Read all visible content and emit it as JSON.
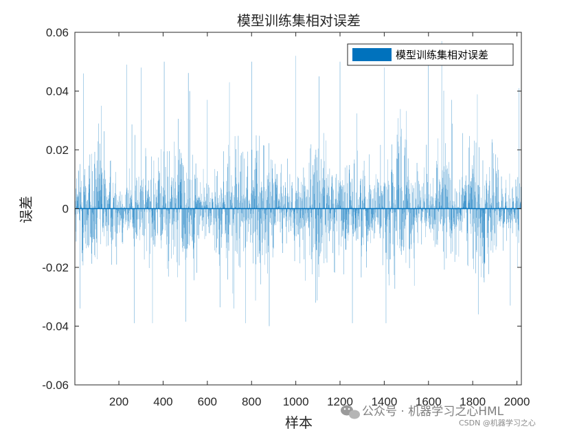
{
  "chart_data": {
    "type": "bar",
    "title": "模型训练集相对误差",
    "xlabel": "样本",
    "ylabel": "误差",
    "x_range": [
      1,
      2020
    ],
    "ylim": [
      -0.06,
      0.06
    ],
    "x_ticks": [
      200,
      400,
      600,
      800,
      1000,
      1200,
      1400,
      1600,
      1800,
      2000
    ],
    "x_tick_labels": [
      "200",
      "400",
      "600",
      "800",
      "1000",
      "1200",
      "1400",
      "1600",
      "1800",
      "2000"
    ],
    "y_ticks": [
      -0.06,
      -0.04,
      -0.02,
      0,
      0.02,
      0.04,
      0.06
    ],
    "y_tick_labels": [
      "-0.06",
      "-0.04",
      "-0.02",
      "0",
      "0.02",
      "0.04",
      "0.06"
    ],
    "grid": false,
    "legend": {
      "position": "top-right"
    },
    "series": [
      {
        "name": "模型训练集相对误差",
        "color": "#0072BD",
        "sample_count": 2020,
        "noise_range": [
          -0.039,
          0.057
        ],
        "peaks": [
          {
            "x": 25,
            "y": -0.034
          },
          {
            "x": 40,
            "y": 0.046
          },
          {
            "x": 120,
            "y": 0.035
          },
          {
            "x": 235,
            "y": 0.049
          },
          {
            "x": 270,
            "y": -0.039
          },
          {
            "x": 300,
            "y": 0.048
          },
          {
            "x": 405,
            "y": 0.05
          },
          {
            "x": 520,
            "y": 0.04
          },
          {
            "x": 600,
            "y": 0.037
          },
          {
            "x": 700,
            "y": 0.043
          },
          {
            "x": 720,
            "y": -0.034
          },
          {
            "x": 800,
            "y": 0.05
          },
          {
            "x": 880,
            "y": -0.04
          },
          {
            "x": 1000,
            "y": 0.052
          },
          {
            "x": 1105,
            "y": 0.045
          },
          {
            "x": 1200,
            "y": 0.05
          },
          {
            "x": 1400,
            "y": 0.048
          },
          {
            "x": 1600,
            "y": 0.05
          },
          {
            "x": 1660,
            "y": 0.057
          },
          {
            "x": 1705,
            "y": 0.037
          },
          {
            "x": 1825,
            "y": -0.036
          },
          {
            "x": 1970,
            "y": -0.033
          },
          {
            "x": 2010,
            "y": 0.041
          }
        ]
      }
    ]
  },
  "watermark": {
    "main": "公众号 · 机器学习之心HML",
    "sub": "CSDN @机器学习之心"
  }
}
